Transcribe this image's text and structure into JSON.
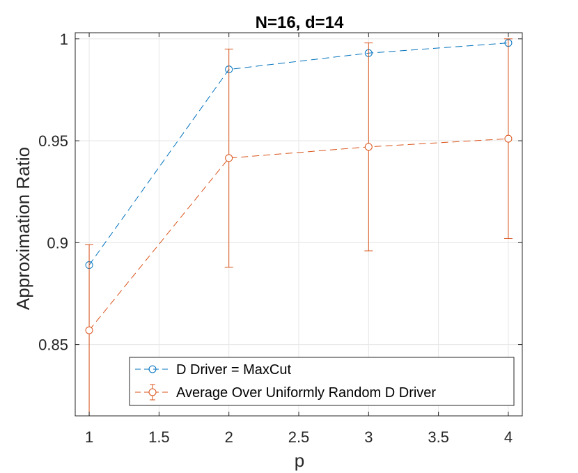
{
  "chart_data": {
    "type": "line",
    "title": "N=16, d=14",
    "xlabel": "p",
    "ylabel": "Approximation Ratio",
    "xlim": [
      0.9,
      4.1
    ],
    "ylim": [
      0.815,
      1.003
    ],
    "xticks": [
      1,
      1.5,
      2,
      2.5,
      3,
      3.5,
      4
    ],
    "xtick_labels": [
      "1",
      "1.5",
      "2",
      "2.5",
      "3",
      "3.5",
      "4"
    ],
    "yticks": [
      0.85,
      0.9,
      0.95,
      1
    ],
    "ytick_labels": [
      "0.85",
      "0.9",
      "0.95",
      "1"
    ],
    "grid": true,
    "legend_position": "bottom-right",
    "series": [
      {
        "name": "D Driver = MaxCut",
        "x": [
          1,
          2,
          3,
          4
        ],
        "y": [
          0.889,
          0.985,
          0.993,
          0.998
        ],
        "color": "#0072BD",
        "line_style": "dashed",
        "marker": "circle"
      },
      {
        "name": "Average Over Uniformly Random D Driver",
        "x": [
          1,
          2,
          3,
          4
        ],
        "y": [
          0.857,
          0.9415,
          0.947,
          0.951
        ],
        "err_low": [
          0.815,
          0.888,
          0.896,
          0.902
        ],
        "err_high": [
          0.899,
          0.995,
          0.998,
          1.0
        ],
        "color": "#D95319",
        "line_style": "dashed",
        "marker": "circle",
        "error_bars": true
      }
    ]
  }
}
